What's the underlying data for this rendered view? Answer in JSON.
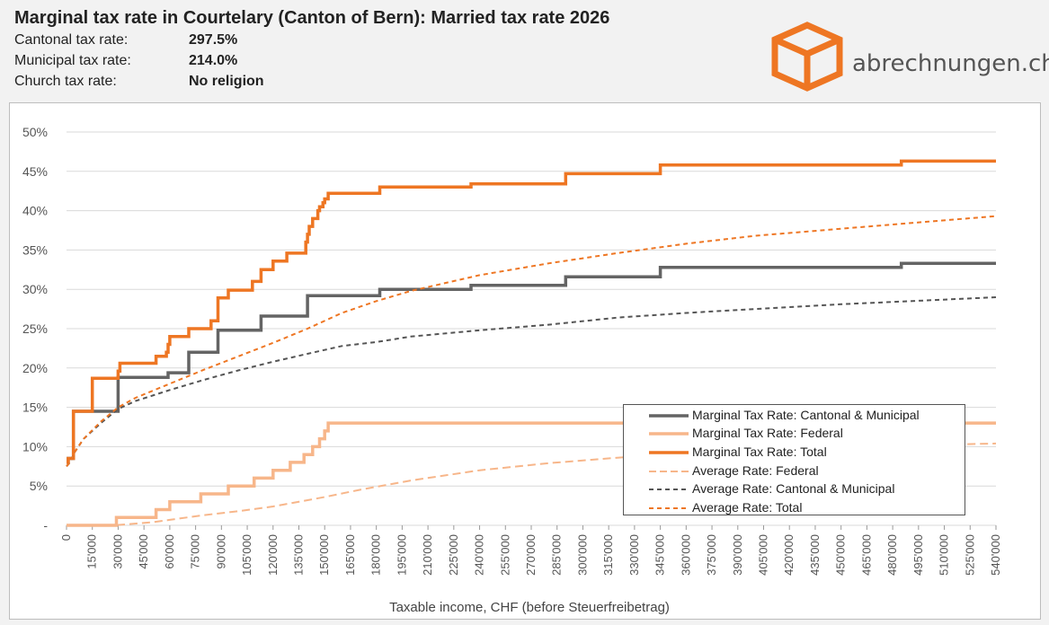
{
  "title": "Marginal tax rate in Courtelary (Canton of Bern): Married tax rate 2026",
  "info": [
    {
      "label": "Cantonal tax rate:",
      "value": "297.5%"
    },
    {
      "label": "Municipal tax rate:",
      "value": "214.0%"
    },
    {
      "label": "Church tax rate:",
      "value": "No religion"
    }
  ],
  "logo": {
    "text": "abrechnungen.ch",
    "icon": "box-icon",
    "color": "#ee7623"
  },
  "chart_data": {
    "type": "line",
    "xlabel": "Taxable income, CHF (before Steuerfreibetrag)",
    "ylabel": "",
    "xlim": [
      0,
      540000
    ],
    "ylim": [
      0,
      0.5
    ],
    "grid": true,
    "legend_position": "bottom-right",
    "x_ticks": [
      "0",
      "15'000",
      "30'000",
      "45'000",
      "60'000",
      "75'000",
      "90'000",
      "105'000",
      "120'000",
      "135'000",
      "150'000",
      "165'000",
      "180'000",
      "195'000",
      "210'000",
      "225'000",
      "240'000",
      "255'000",
      "270'000",
      "285'000",
      "300'000",
      "315'000",
      "330'000",
      "345'000",
      "360'000",
      "375'000",
      "390'000",
      "405'000",
      "420'000",
      "435'000",
      "450'000",
      "465'000",
      "480'000",
      "495'000",
      "510'000",
      "525'000",
      "540'000"
    ],
    "y_ticks": [
      {
        "value": 0,
        "label": "-"
      },
      {
        "value": 0.05,
        "label": "5%"
      },
      {
        "value": 0.1,
        "label": "10%"
      },
      {
        "value": 0.15,
        "label": "15%"
      },
      {
        "value": 0.2,
        "label": "20%"
      },
      {
        "value": 0.25,
        "label": "25%"
      },
      {
        "value": 0.3,
        "label": "30%"
      },
      {
        "value": 0.35,
        "label": "35%"
      },
      {
        "value": 0.4,
        "label": "40%"
      },
      {
        "value": 0.45,
        "label": "45%"
      },
      {
        "value": 0.5,
        "label": "50%"
      }
    ],
    "series": [
      {
        "name": "Marginal Tax Rate: Cantonal & Municipal",
        "style": "solid",
        "width": 3.5,
        "color": "#646464",
        "step": true,
        "x": [
          0,
          1000,
          4000,
          30000,
          59000,
          71000,
          88000,
          113000,
          140000,
          182000,
          235000,
          290000,
          345000,
          485000,
          540000
        ],
        "y": [
          0.08,
          0.085,
          0.145,
          0.188,
          0.194,
          0.22,
          0.248,
          0.266,
          0.292,
          0.3,
          0.305,
          0.316,
          0.328,
          0.333,
          0.333
        ]
      },
      {
        "name": "Marginal Tax Rate: Federal",
        "style": "solid",
        "width": 3.5,
        "color": "#f7b68a",
        "step": true,
        "x": [
          0,
          29000,
          52000,
          60000,
          78000,
          94000,
          109000,
          120000,
          130000,
          138000,
          143000,
          147000,
          150000,
          152000,
          540000
        ],
        "y": [
          0,
          0.01,
          0.02,
          0.03,
          0.04,
          0.05,
          0.06,
          0.07,
          0.08,
          0.09,
          0.1,
          0.11,
          0.12,
          0.13,
          0.13
        ]
      },
      {
        "name": "Marginal Tax Rate: Total",
        "style": "solid",
        "width": 3.5,
        "color": "#ee7623",
        "step": true,
        "x": [
          0,
          1000,
          4000,
          15000,
          30000,
          31000,
          52000,
          58000,
          59000,
          60000,
          71000,
          84000,
          88000,
          94000,
          108000,
          113000,
          120000,
          128000,
          139000,
          140000,
          141000,
          143000,
          146000,
          147000,
          149000,
          150000,
          152000,
          182000,
          235000,
          290000,
          345000,
          485000,
          540000
        ],
        "y": [
          0.08,
          0.085,
          0.145,
          0.187,
          0.196,
          0.206,
          0.215,
          0.22,
          0.23,
          0.24,
          0.25,
          0.26,
          0.289,
          0.299,
          0.31,
          0.325,
          0.336,
          0.346,
          0.36,
          0.37,
          0.38,
          0.39,
          0.4,
          0.405,
          0.41,
          0.415,
          0.422,
          0.43,
          0.434,
          0.447,
          0.458,
          0.463,
          0.463
        ]
      },
      {
        "name": "Average Rate: Federal",
        "style": "dashed",
        "width": 2,
        "color": "#f7b68a",
        "step": false,
        "x": [
          0,
          30000,
          50000,
          60000,
          80000,
          100000,
          120000,
          140000,
          150000,
          170000,
          200000,
          240000,
          280000,
          320000,
          360000,
          400000,
          450000,
          500000,
          540000
        ],
        "y": [
          0,
          0.0004,
          0.004,
          0.007,
          0.013,
          0.018,
          0.024,
          0.032,
          0.036,
          0.045,
          0.057,
          0.07,
          0.079,
          0.086,
          0.091,
          0.095,
          0.099,
          0.102,
          0.104
        ]
      },
      {
        "name": "Average Rate: Cantonal & Municipal",
        "style": "dashed",
        "width": 2,
        "color": "#555555",
        "step": false,
        "x": [
          0,
          2000,
          5000,
          10000,
          20000,
          30000,
          40000,
          60000,
          80000,
          100000,
          120000,
          140000,
          160000,
          180000,
          200000,
          240000,
          280000,
          320000,
          360000,
          400000,
          450000,
          500000,
          540000
        ],
        "y": [
          0.075,
          0.08,
          0.094,
          0.11,
          0.13,
          0.148,
          0.158,
          0.172,
          0.185,
          0.197,
          0.208,
          0.218,
          0.228,
          0.233,
          0.24,
          0.248,
          0.255,
          0.264,
          0.27,
          0.275,
          0.281,
          0.286,
          0.29
        ]
      },
      {
        "name": "Average Rate: Total",
        "style": "dashed",
        "width": 2,
        "color": "#ee7623",
        "step": false,
        "x": [
          0,
          2000,
          5000,
          10000,
          20000,
          30000,
          40000,
          60000,
          80000,
          100000,
          120000,
          140000,
          160000,
          180000,
          200000,
          240000,
          280000,
          320000,
          360000,
          400000,
          450000,
          500000,
          540000
        ],
        "y": [
          0.075,
          0.08,
          0.094,
          0.11,
          0.132,
          0.15,
          0.162,
          0.18,
          0.198,
          0.215,
          0.232,
          0.25,
          0.27,
          0.285,
          0.298,
          0.318,
          0.333,
          0.346,
          0.358,
          0.368,
          0.377,
          0.386,
          0.393
        ]
      }
    ]
  }
}
